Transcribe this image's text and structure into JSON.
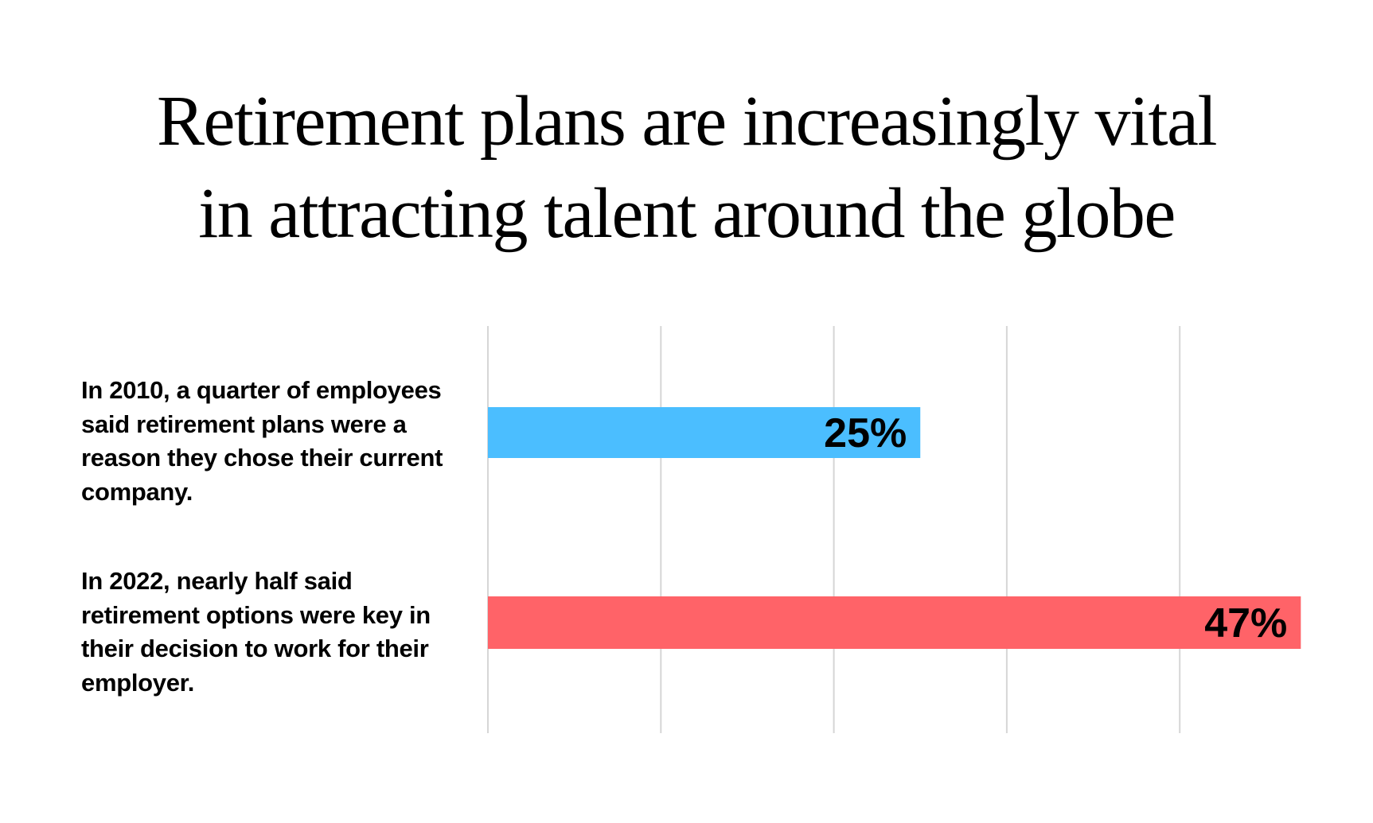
{
  "chart_data": {
    "type": "bar",
    "orientation": "horizontal",
    "title": "Retirement plans are increasingly vital in attracting talent around the globe",
    "title_lines": [
      "Retirement plans are increasingly vital",
      "in attracting talent around the globe"
    ],
    "categories": [
      "In 2010, a quarter of employees said retirement plans were a reason they chose their current company.",
      "In 2022, nearly half said retirement options were key in their decision to work for their employer."
    ],
    "values": [
      25,
      47
    ],
    "data_labels": [
      "25%",
      "47%"
    ],
    "colors": [
      "#4BBEFF",
      "#FF6368"
    ],
    "xlim": [
      0,
      47
    ],
    "gridline_values": [
      0,
      10,
      20,
      30,
      40
    ],
    "grid": true,
    "legend": "none"
  }
}
